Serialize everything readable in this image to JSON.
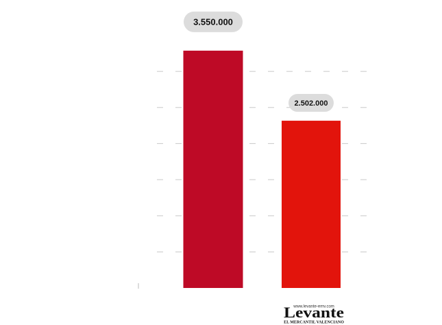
{
  "chart_data": {
    "type": "bar",
    "values": [
      3550000,
      2502000
    ],
    "value_labels": [
      "3.550.000",
      "2.502.000"
    ],
    "colors": [
      "#be0a26",
      "#e2140c"
    ],
    "ylim": [
      0,
      4000000
    ],
    "yticks": [
      540000,
      1080000,
      1620000,
      2160000,
      2700000,
      3240000
    ],
    "grid": true
  },
  "logo": {
    "url": "www.levante-emv.com",
    "name": "Levante",
    "tagline": "EL MERCANTIL VALENCIANO"
  }
}
